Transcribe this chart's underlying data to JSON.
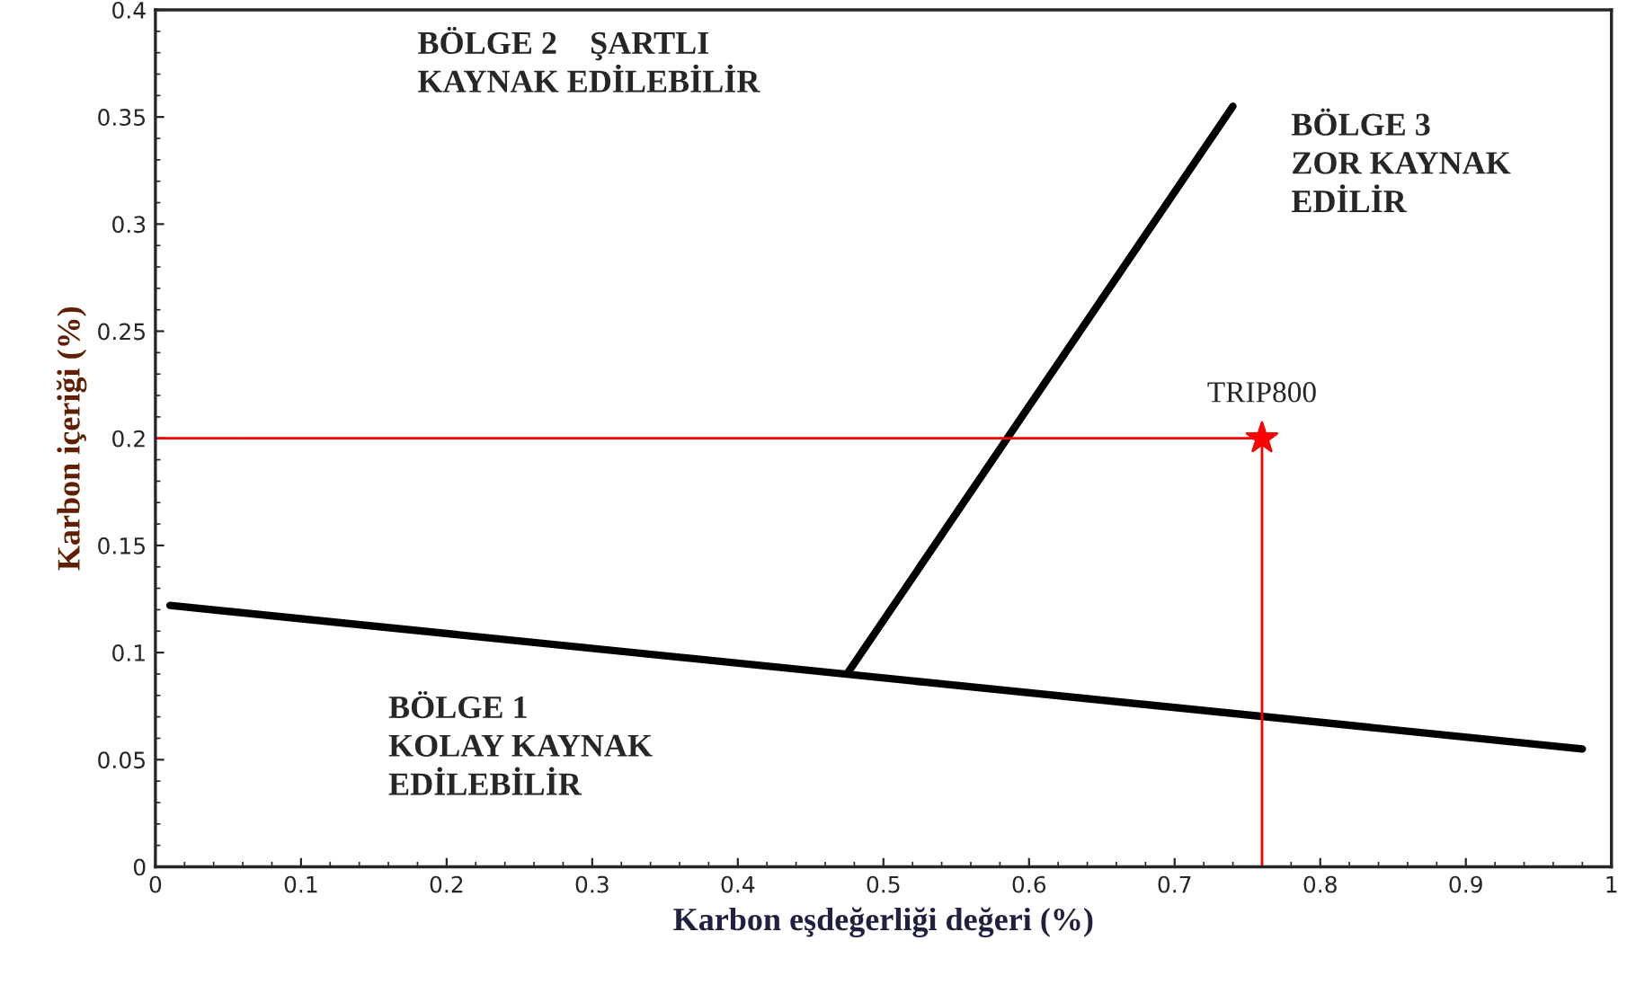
{
  "chart_data": {
    "type": "line",
    "xlabel": "Karbon eşdeğerliği değeri (%)",
    "ylabel": "Karbon içeriği (%)",
    "xlim": [
      0,
      1
    ],
    "ylim": [
      0,
      0.4
    ],
    "xticks": [
      0,
      0.1,
      0.2,
      0.3,
      0.4,
      0.5,
      0.6,
      0.7,
      0.8,
      0.9,
      1
    ],
    "yticks": [
      0,
      0.05,
      0.1,
      0.15,
      0.2,
      0.25,
      0.3,
      0.35,
      0.4
    ],
    "grid": false,
    "legend": false,
    "series": [
      {
        "color": "#000000",
        "x": [
          0.01,
          0.98
        ],
        "values": [
          0.122,
          0.055
        ]
      },
      {
        "color": "#000000",
        "x": [
          0.475,
          0.74
        ],
        "values": [
          0.09,
          0.355
        ]
      },
      {
        "color": "#ff0000",
        "x": [
          0,
          0.76
        ],
        "values": [
          0.2,
          0.2
        ]
      },
      {
        "color": "#ff0000",
        "x": [
          0.76,
          0.76
        ],
        "values": [
          0,
          0.2
        ]
      },
      {
        "type": "scatter",
        "marker": "star",
        "color": "#ff0000",
        "x": [
          0.76
        ],
        "values": [
          0.2
        ]
      }
    ],
    "annotations": [
      "BÖLGE 2    ŞARTLI\nKAYNAK EDİLEBİLİR",
      "BÖLGE 3\nZOR KAYNAK\nEDİLİR",
      "BÖLGE 1\nKOLAY KAYNAK\nEDİLEBİLİR",
      {
        "text": "TRIP800",
        "x": 0.76,
        "y": 0.2
      }
    ]
  }
}
